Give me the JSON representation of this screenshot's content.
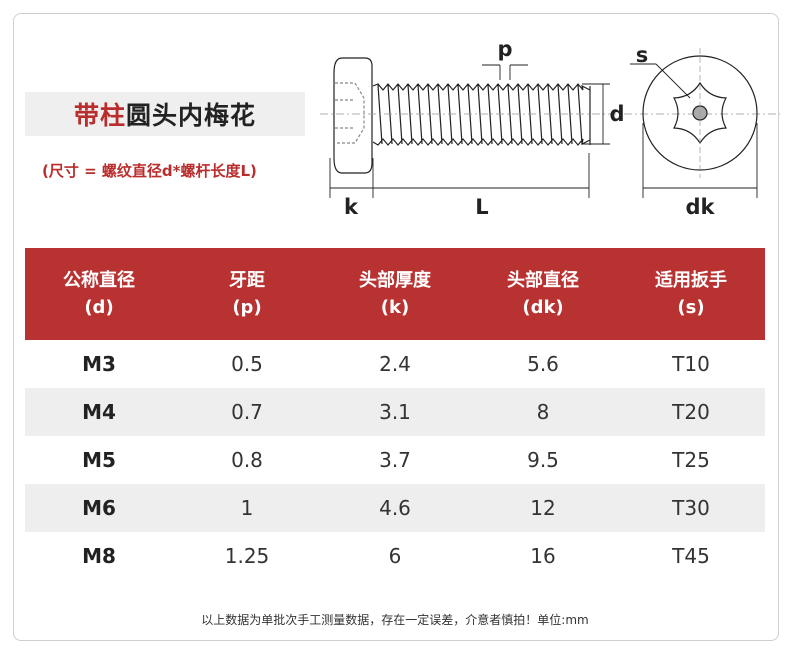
{
  "title": {
    "red": "带柱",
    "black": "圆头内梅花"
  },
  "subtitle": "(尺寸 = 螺纹直径d*螺杆长度L)",
  "diagram": {
    "labels": {
      "p": "p",
      "d": "d",
      "s": "s",
      "k": "k",
      "L": "L",
      "dk": "dk"
    }
  },
  "table": {
    "headers": [
      [
        "公称直径",
        "(d)"
      ],
      [
        "牙距",
        "(p)"
      ],
      [
        "头部厚度",
        "(k)"
      ],
      [
        "头部直径",
        "(dk)"
      ],
      [
        "适用扳手",
        "(s)"
      ]
    ],
    "rows": [
      [
        "M3",
        "0.5",
        "2.4",
        "5.6",
        "T10"
      ],
      [
        "M4",
        "0.7",
        "3.1",
        "8",
        "T20"
      ],
      [
        "M5",
        "0.8",
        "3.7",
        "9.5",
        "T25"
      ],
      [
        "M6",
        "1",
        "4.6",
        "12",
        "T30"
      ],
      [
        "M8",
        "1.25",
        "6",
        "16",
        "T45"
      ]
    ]
  },
  "footer": "以上数据为单批次手工测量数据，存在一定误差，介意者慎拍！单位:mm",
  "colors": {
    "accent": "#b93232",
    "alt_row": "#eeeeee"
  }
}
